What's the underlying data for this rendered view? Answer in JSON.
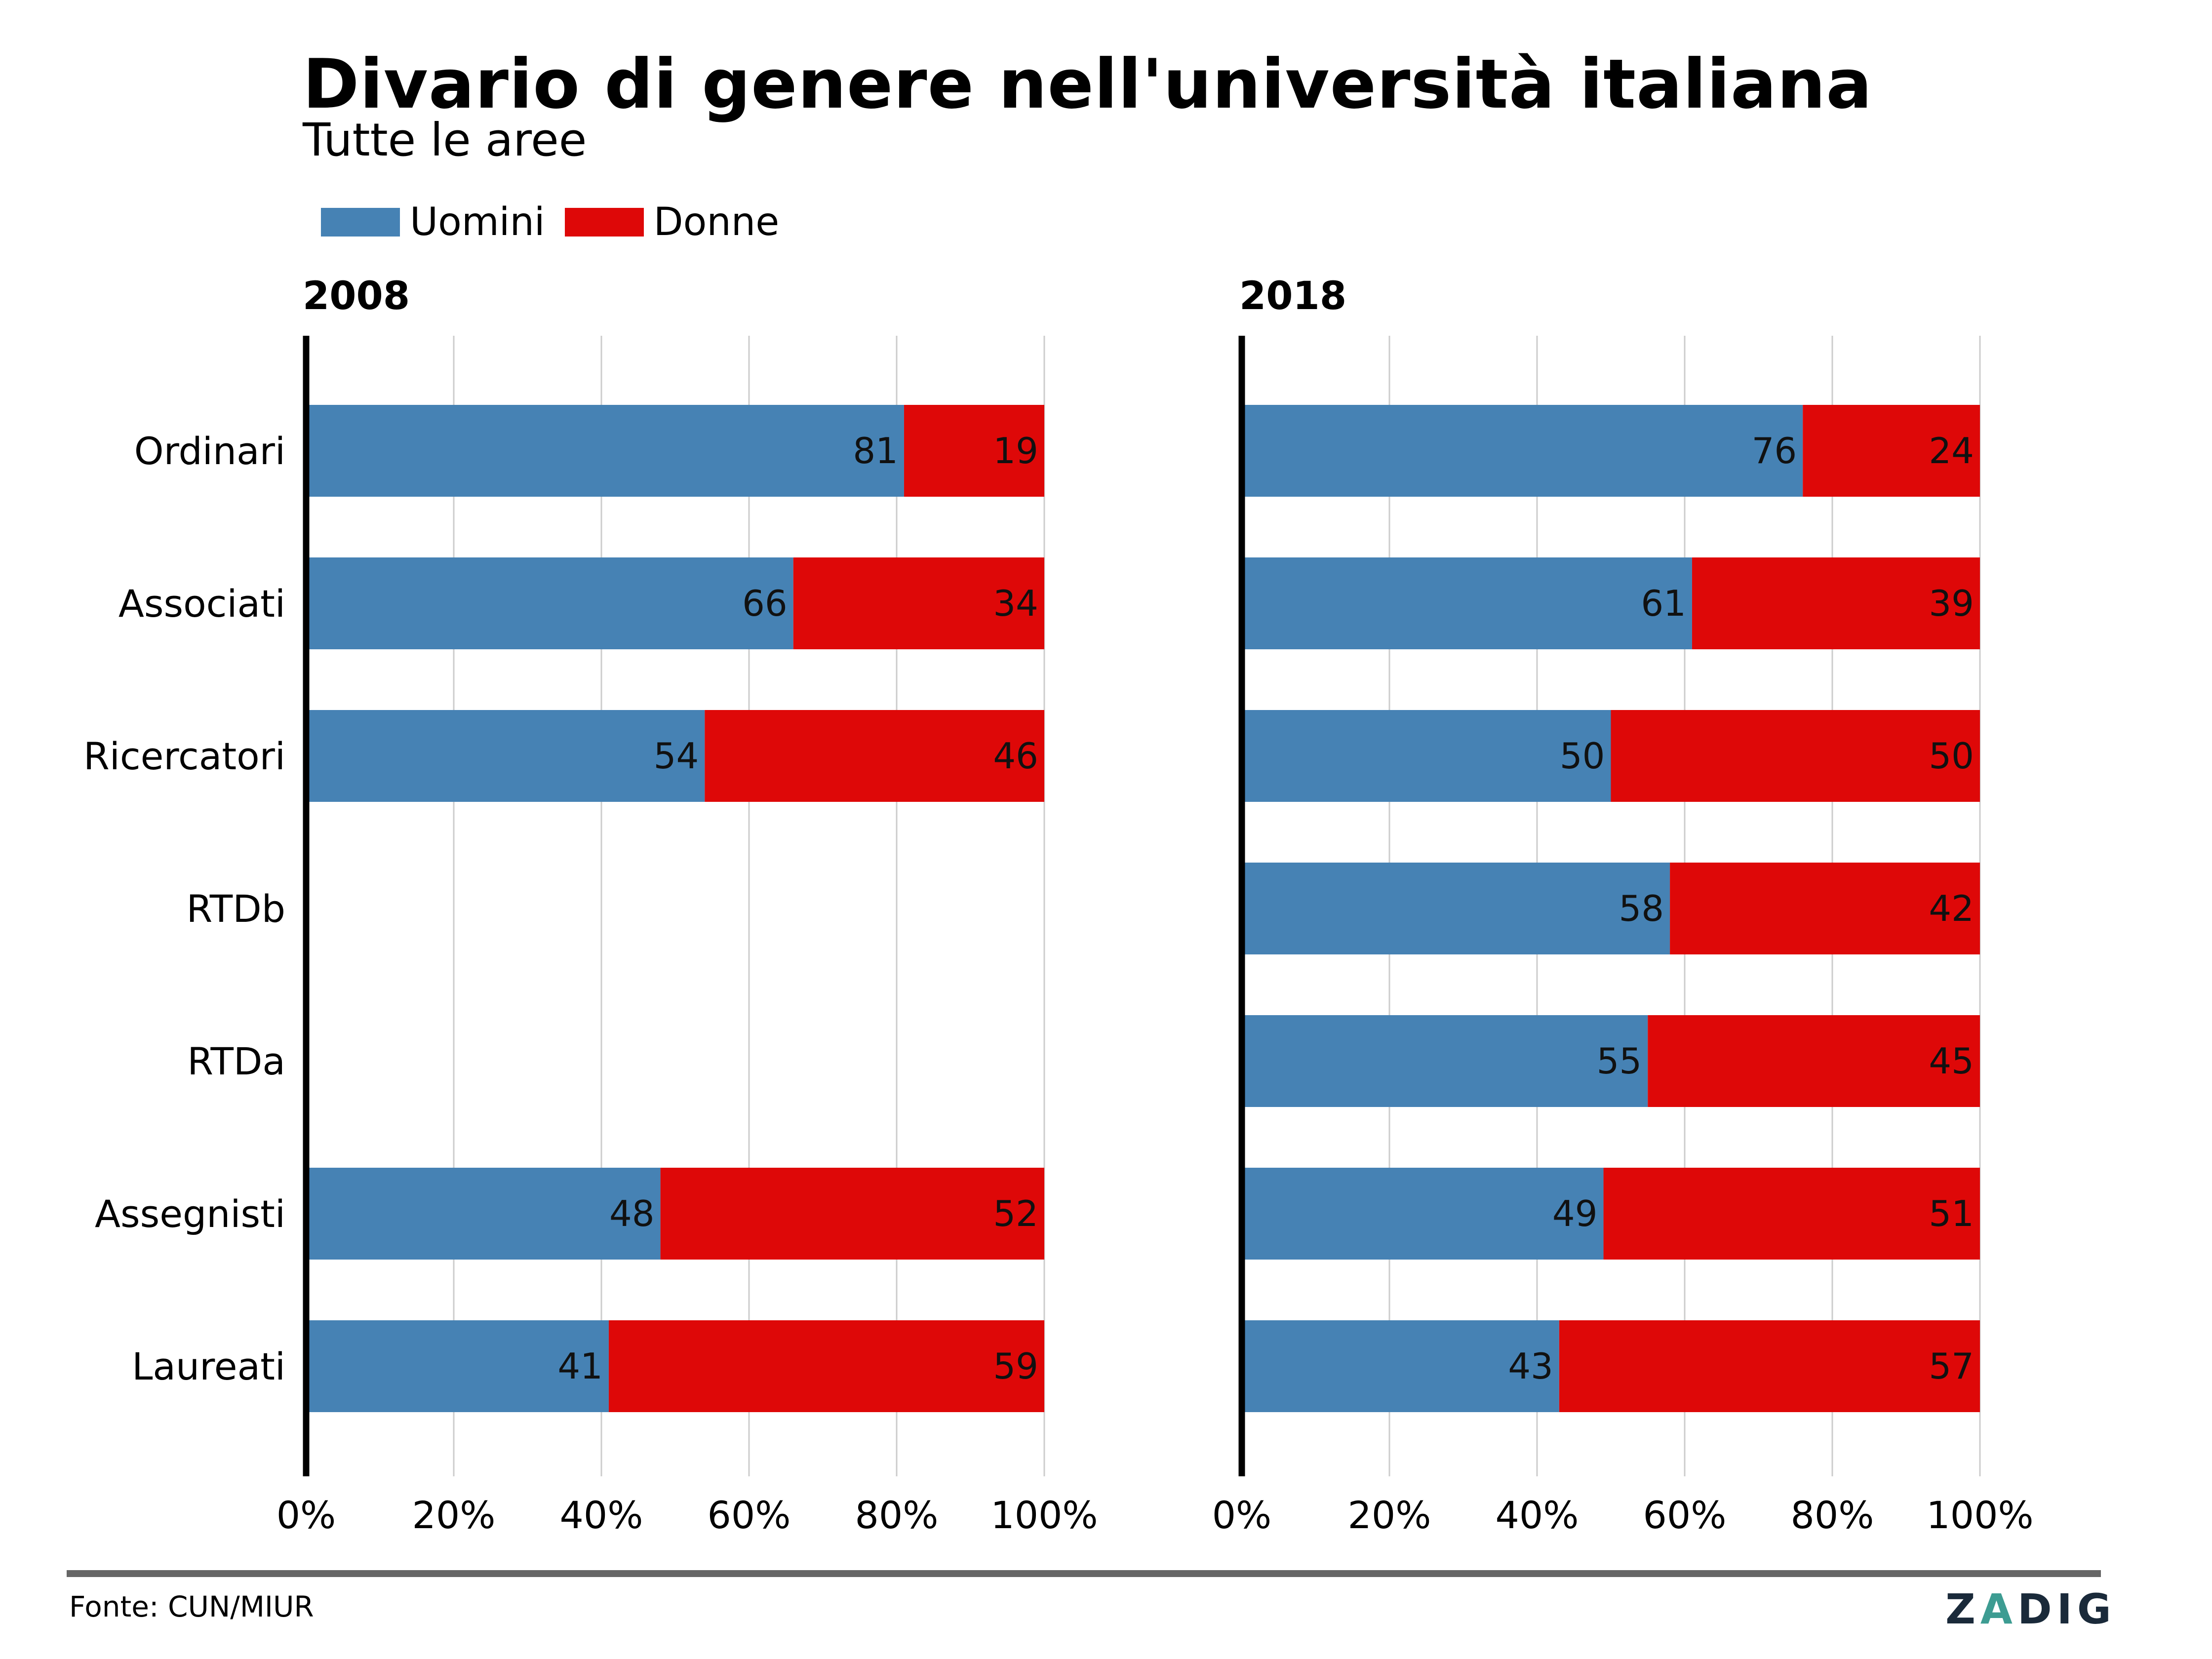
{
  "title": "Divario di genere nell'università italiana",
  "subtitle": "Tutte le aree",
  "legend": {
    "men_label": "Uomini",
    "women_label": "Donne"
  },
  "source": "Fonte: CUN/MIUR",
  "logo": {
    "text_before": "Z",
    "text_accent": "A",
    "text_after": "DIG"
  },
  "colors": {
    "men": "#4682b4",
    "women": "#de0808",
    "grid": "#cccccc",
    "axis": "#000000"
  },
  "chart_data": [
    {
      "type": "bar",
      "orientation": "horizontal",
      "stacked": true,
      "title": "2008",
      "categories": [
        "Ordinari",
        "Associati",
        "Ricercatori",
        "RTDb",
        "RTDa",
        "Assegnisti",
        "Laureati"
      ],
      "series": [
        {
          "name": "Uomini",
          "values": [
            81,
            66,
            54,
            null,
            null,
            48,
            41
          ]
        },
        {
          "name": "Donne",
          "values": [
            19,
            34,
            46,
            null,
            null,
            52,
            59
          ]
        }
      ],
      "xlim": [
        0,
        100
      ],
      "xticks": [
        "0%",
        "20%",
        "40%",
        "60%",
        "80%",
        "100%"
      ],
      "grid": true
    },
    {
      "type": "bar",
      "orientation": "horizontal",
      "stacked": true,
      "title": "2018",
      "categories": [
        "Ordinari",
        "Associati",
        "Ricercatori",
        "RTDb",
        "RTDa",
        "Assegnisti",
        "Laureati"
      ],
      "series": [
        {
          "name": "Uomini",
          "values": [
            76,
            61,
            50,
            58,
            55,
            49,
            43
          ]
        },
        {
          "name": "Donne",
          "values": [
            24,
            39,
            50,
            42,
            45,
            51,
            57
          ]
        }
      ],
      "xlim": [
        0,
        100
      ],
      "xticks": [
        "0%",
        "20%",
        "40%",
        "60%",
        "80%",
        "100%"
      ],
      "grid": true
    }
  ]
}
